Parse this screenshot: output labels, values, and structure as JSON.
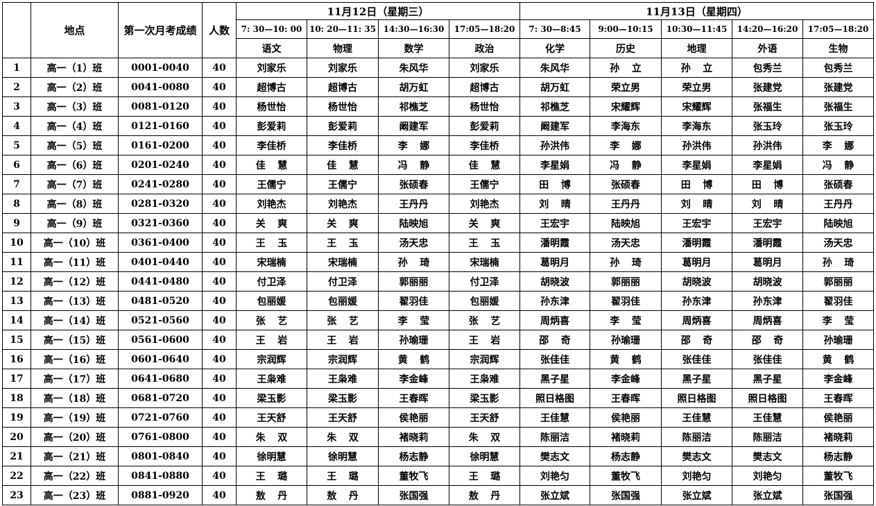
{
  "header": {
    "location": "地点",
    "score": "第一次月考成绩",
    "count": "人数",
    "dates": [
      "11月12日（星期三）",
      "11月13日（星期四）"
    ],
    "times": [
      "7: 30—10: 00",
      "10: 20—11: 35",
      "14:30—16:30",
      "17:05—18:20",
      "7: 30—8:45",
      "9:00—10:15",
      "10:30—11:45",
      "14:20—16:20",
      "17:05—18:20"
    ],
    "subjects": [
      "语文",
      "物理",
      "数学",
      "政治",
      "化学",
      "历史",
      "地理",
      "外语",
      "生物"
    ]
  },
  "rows": [
    [
      1,
      "高一（1）班",
      "0001-0040",
      40,
      "刘家乐",
      "刘家乐",
      "朱风华",
      "刘家乐",
      "朱风华",
      "孙 立",
      "孙 立",
      "包秀兰",
      "包秀兰"
    ],
    [
      2,
      "高一（2）班",
      "0041-0080",
      40,
      "超博古",
      "超博古",
      "胡万虹",
      "超博古",
      "胡万虹",
      "荣立男",
      "荣立男",
      "张建党",
      "张建党"
    ],
    [
      3,
      "高一（3）班",
      "0081-0120",
      40,
      "杨世怡",
      "杨世怡",
      "祁樵芝",
      "杨世怡",
      "祁樵芝",
      "宋耀辉",
      "宋耀辉",
      "张福生",
      "张福生"
    ],
    [
      4,
      "高一（4）班",
      "0121-0160",
      40,
      "彭爱莉",
      "彭爱莉",
      "阚建军",
      "彭爱莉",
      "阚建军",
      "李海东",
      "李海东",
      "张玉玲",
      "张玉玲"
    ],
    [
      5,
      "高一（5）班",
      "0161-0200",
      40,
      "李佳桥",
      "李佳桥",
      "李 娜",
      "李佳桥",
      "孙洪伟",
      "李 娜",
      "孙洪伟",
      "孙洪伟",
      "李 娜"
    ],
    [
      6,
      "高一（6）班",
      "0201-0240",
      40,
      "佳 慧",
      "佳 慧",
      "冯 静",
      "佳 慧",
      "李星娟",
      "冯 静",
      "李星娟",
      "李星娟",
      "冯 静"
    ],
    [
      7,
      "高一（7）班",
      "0241-0280",
      40,
      "王儒宁",
      "王儒宁",
      "张硕春",
      "王儒宁",
      "田 博",
      "张硕春",
      "田 博",
      "田 博",
      "张硕春"
    ],
    [
      8,
      "高一（8）班",
      "0281-0320",
      40,
      "刘艳杰",
      "刘艳杰",
      "王丹丹",
      "刘艳杰",
      "刘 晴",
      "王丹丹",
      "刘 晴",
      "刘 晴",
      "王丹丹"
    ],
    [
      9,
      "高一（9）班",
      "0321-0360",
      40,
      "关 爽",
      "关 爽",
      "陆映旭",
      "关 爽",
      "王宏宇",
      "陆映旭",
      "王宏宇",
      "王宏宇",
      "陆映旭"
    ],
    [
      10,
      "高一（10）班",
      "0361-0400",
      40,
      "王 玉",
      "王 玉",
      "汤天忠",
      "王 玉",
      "潘明霞",
      "汤天忠",
      "潘明霞",
      "潘明霞",
      "汤天忠"
    ],
    [
      11,
      "高一（11）班",
      "0401-0440",
      40,
      "宋瑞楠",
      "宋瑞楠",
      "孙 琦",
      "宋瑞楠",
      "葛明月",
      "孙 琦",
      "葛明月",
      "葛明月",
      "孙 琦"
    ],
    [
      12,
      "高一（12）班",
      "0441-0480",
      40,
      "付卫泽",
      "付卫泽",
      "郭丽丽",
      "付卫泽",
      "胡晓波",
      "郭丽丽",
      "胡晓波",
      "胡晓波",
      "郭丽丽"
    ],
    [
      13,
      "高一（13）班",
      "0481-0520",
      40,
      "包丽媛",
      "包丽媛",
      "翟羽佳",
      "包丽媛",
      "孙东津",
      "翟羽佳",
      "孙东津",
      "孙东津",
      "翟羽佳"
    ],
    [
      14,
      "高一（14）班",
      "0521-0560",
      40,
      "张 艺",
      "张 艺",
      "李 莹",
      "张 艺",
      "周炳喜",
      "李 莹",
      "周炳喜",
      "周炳喜",
      "李 莹"
    ],
    [
      15,
      "高一（15）班",
      "0561-0600",
      40,
      "王 岩",
      "王 岩",
      "孙瑜珊",
      "王 岩",
      "邵 奇",
      "孙瑜珊",
      "邵 奇",
      "邵 奇",
      "孙瑜珊"
    ],
    [
      16,
      "高一（16）班",
      "0601-0640",
      40,
      "宗润辉",
      "宗润辉",
      "黄 鹤",
      "宗润辉",
      "张佳佳",
      "黄 鹤",
      "张佳佳",
      "张佳佳",
      "黄 鹤"
    ],
    [
      17,
      "高一（17）班",
      "0641-0680",
      40,
      "王枭难",
      "王枭难",
      "李金峰",
      "王枭难",
      "黑子星",
      "李金峰",
      "黑子星",
      "黑子星",
      "李金峰"
    ],
    [
      18,
      "高一（18）班",
      "0681-0720",
      40,
      "梁玉影",
      "梁玉影",
      "王春晖",
      "梁玉影",
      "照日格图",
      "王春晖",
      "照日格图",
      "照日格图",
      "王春晖"
    ],
    [
      19,
      "高一（19）班",
      "0721-0760",
      40,
      "王天舒",
      "王天舒",
      "侯艳丽",
      "王天舒",
      "王佳慧",
      "侯艳丽",
      "王佳慧",
      "王佳慧",
      "侯艳丽"
    ],
    [
      20,
      "高一（20）班",
      "0761-0800",
      40,
      "朱 双",
      "朱 双",
      "褚晓莉",
      "朱 双",
      "陈丽洁",
      "褚晓莉",
      "陈丽洁",
      "陈丽洁",
      "褚晓莉"
    ],
    [
      21,
      "高一（21）班",
      "0801-0840",
      40,
      "徐明慧",
      "徐明慧",
      "杨志静",
      "徐明慧",
      "樊志文",
      "杨志静",
      "樊志文",
      "樊志文",
      "杨志静"
    ],
    [
      22,
      "高一（22）班",
      "0841-0880",
      40,
      "王 璐",
      "王 璐",
      "董牧飞",
      "王 璐",
      "刘艳匀",
      "董牧飞",
      "刘艳匀",
      "刘艳匀",
      "董牧飞"
    ],
    [
      23,
      "高一（23）班",
      "0881-0920",
      40,
      "敖 丹",
      "敖 丹",
      "张国强",
      "敖 丹",
      "张立斌",
      "张国强",
      "张立斌",
      "张立斌",
      "张国强"
    ]
  ]
}
